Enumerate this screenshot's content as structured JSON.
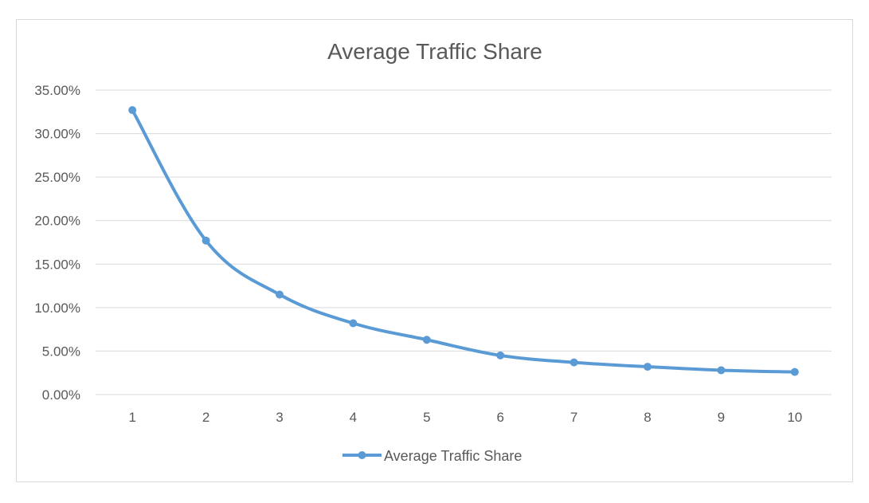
{
  "chart_data": {
    "type": "line",
    "title": "Average Traffic Share",
    "xlabel": "",
    "ylabel": "",
    "categories": [
      "1",
      "2",
      "3",
      "4",
      "5",
      "6",
      "7",
      "8",
      "9",
      "10"
    ],
    "y_ticks": [
      "0.00%",
      "5.00%",
      "10.00%",
      "15.00%",
      "20.00%",
      "25.00%",
      "30.00%",
      "35.00%"
    ],
    "ylim": [
      0,
      35
    ],
    "y_unit": "%",
    "grid": true,
    "legend_position": "bottom",
    "series": [
      {
        "name": "Average Traffic Share",
        "color": "#5b9bd5",
        "values": [
          32.7,
          17.7,
          11.5,
          8.2,
          6.3,
          4.5,
          3.7,
          3.2,
          2.8,
          2.6
        ]
      }
    ]
  }
}
